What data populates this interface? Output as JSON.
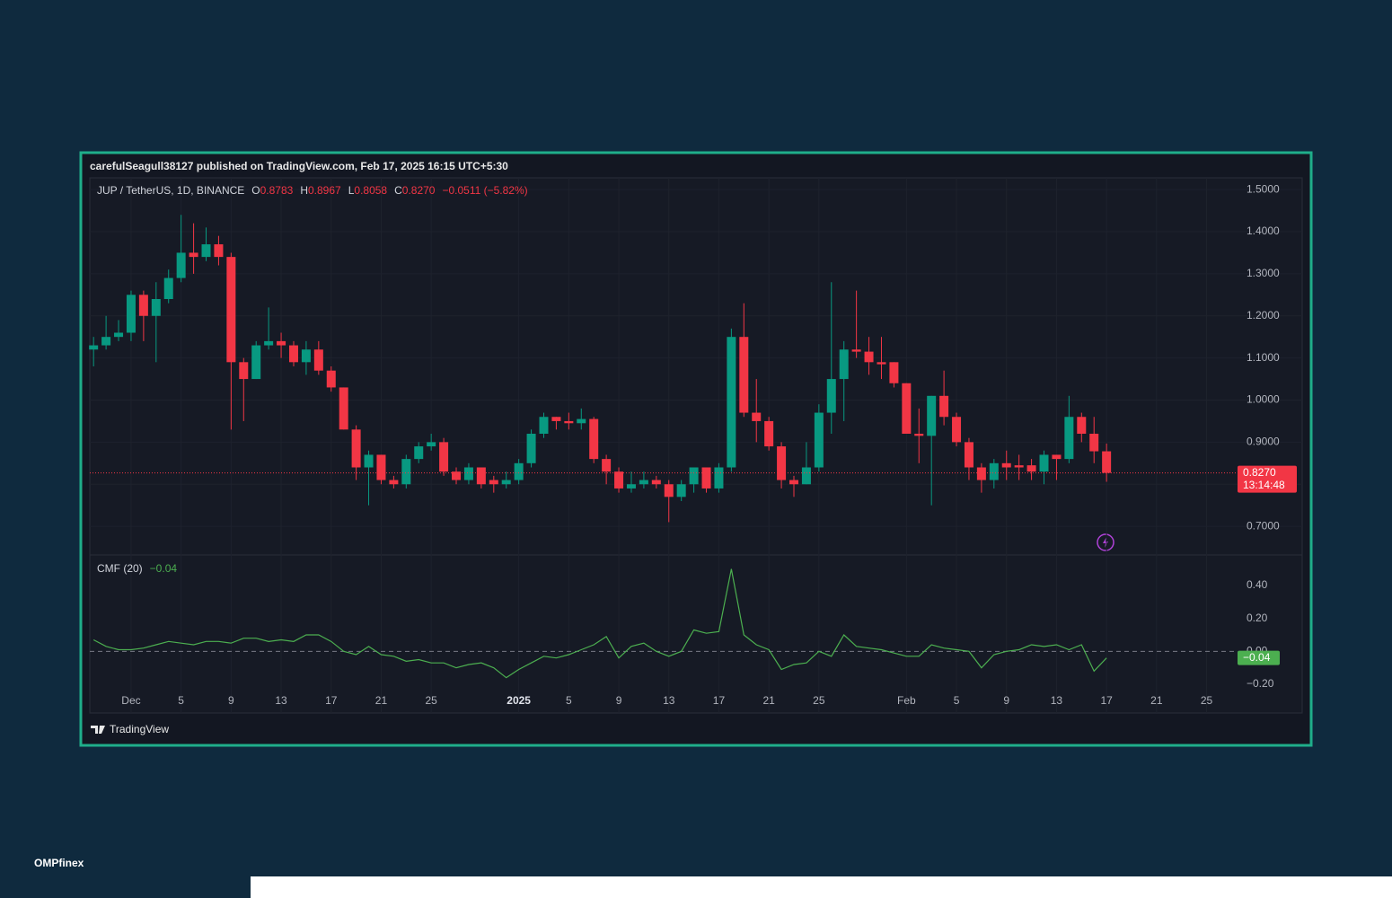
{
  "header": {
    "published": "carefulSeagull38127 published on TradingView.com, Feb 17, 2025 16:15 UTC+5:30",
    "footer_logo": "TradingView",
    "brand": "OMPfinex"
  },
  "chart_data": [
    {
      "type": "candlestick",
      "legend": {
        "symbol": "JUP / TetherUS, 1D, BINANCE",
        "items": [
          {
            "key": "O",
            "value": "0.8783"
          },
          {
            "key": "H",
            "value": "0.8967"
          },
          {
            "key": "L",
            "value": "0.8058"
          },
          {
            "key": "C",
            "value": "0.8270"
          }
        ],
        "change": "−0.0511 (−5.82%)"
      },
      "last_price_label": "0.8270",
      "countdown": "13:14:48",
      "up_color": "#089981",
      "down_color": "#f23645",
      "grid": true,
      "xlim": [
        -0.3,
        90.9
      ],
      "xticks": [
        {
          "value": 3,
          "label": "Dec"
        },
        {
          "value": 7,
          "label": "5"
        },
        {
          "value": 11,
          "label": "9"
        },
        {
          "value": 15,
          "label": "13"
        },
        {
          "value": 19,
          "label": "17"
        },
        {
          "value": 23,
          "label": "21"
        },
        {
          "value": 27,
          "label": "25"
        },
        {
          "value": 34,
          "label": "2025"
        },
        {
          "value": 38,
          "label": "5"
        },
        {
          "value": 42,
          "label": "9"
        },
        {
          "value": 46,
          "label": "13"
        },
        {
          "value": 50,
          "label": "17"
        },
        {
          "value": 54,
          "label": "21"
        },
        {
          "value": 58,
          "label": "25"
        },
        {
          "value": 65,
          "label": "Feb"
        },
        {
          "value": 69,
          "label": "5"
        },
        {
          "value": 73,
          "label": "9"
        },
        {
          "value": 77,
          "label": "13"
        },
        {
          "value": 81,
          "label": "17"
        },
        {
          "value": 85,
          "label": "21"
        },
        {
          "value": 89,
          "label": "25"
        }
      ],
      "ylim": [
        0.632,
        1.528
      ],
      "yticks": [
        {
          "value": 0.7,
          "label": "0.7000"
        },
        {
          "value": 0.8,
          "label": "0.8000"
        },
        {
          "value": 0.9,
          "label": "0.9000"
        },
        {
          "value": 1.0,
          "label": "1.0000"
        },
        {
          "value": 1.1,
          "label": "1.1000"
        },
        {
          "value": 1.2,
          "label": "1.2000"
        },
        {
          "value": 1.3,
          "label": "1.3000"
        },
        {
          "value": 1.4,
          "label": "1.4000"
        },
        {
          "value": 1.5,
          "label": "1.5000"
        }
      ],
      "open": [
        1.12,
        1.13,
        1.15,
        1.16,
        1.25,
        1.2,
        1.24,
        1.29,
        1.35,
        1.34,
        1.37,
        1.34,
        1.09,
        1.05,
        1.13,
        1.14,
        1.13,
        1.09,
        1.12,
        1.07,
        1.03,
        0.93,
        0.84,
        0.87,
        0.81,
        0.8,
        0.86,
        0.89,
        0.9,
        0.83,
        0.81,
        0.84,
        0.81,
        0.8,
        0.81,
        0.85,
        0.92,
        0.96,
        0.95,
        0.945,
        0.955,
        0.86,
        0.83,
        0.79,
        0.8,
        0.81,
        0.8,
        0.77,
        0.8,
        0.84,
        0.79,
        0.84,
        1.15,
        0.97,
        0.95,
        0.89,
        0.81,
        0.8,
        0.84,
        0.97,
        1.05,
        1.12,
        1.115,
        1.09,
        1.09,
        1.04,
        0.92,
        0.915,
        1.01,
        0.96,
        0.9,
        0.84,
        0.81,
        0.85,
        0.845,
        0.845,
        0.83,
        0.87,
        0.86,
        0.96,
        0.92,
        0.8783
      ],
      "high": [
        1.15,
        1.2,
        1.19,
        1.26,
        1.26,
        1.28,
        1.31,
        1.44,
        1.42,
        1.41,
        1.39,
        1.35,
        1.1,
        1.14,
        1.22,
        1.16,
        1.14,
        1.14,
        1.14,
        1.08,
        1.03,
        0.94,
        0.88,
        0.87,
        0.82,
        0.87,
        0.9,
        0.92,
        0.91,
        0.84,
        0.85,
        0.84,
        0.82,
        0.83,
        0.86,
        0.93,
        0.97,
        0.96,
        0.97,
        0.98,
        0.96,
        0.87,
        0.84,
        0.83,
        0.83,
        0.82,
        0.81,
        0.81,
        0.84,
        0.84,
        0.85,
        1.17,
        1.23,
        1.05,
        0.96,
        0.9,
        0.82,
        0.9,
        0.99,
        1.28,
        1.14,
        1.26,
        1.15,
        1.15,
        1.09,
        1.04,
        0.98,
        1.01,
        1.07,
        0.97,
        0.91,
        0.85,
        0.86,
        0.88,
        0.87,
        0.86,
        0.88,
        0.87,
        1.01,
        0.97,
        0.96,
        0.8967
      ],
      "low": [
        1.08,
        1.12,
        1.14,
        1.14,
        1.14,
        1.09,
        1.23,
        1.28,
        1.3,
        1.33,
        1.32,
        0.93,
        0.95,
        1.05,
        1.12,
        1.1,
        1.08,
        1.06,
        1.06,
        1.02,
        0.93,
        0.81,
        0.75,
        0.8,
        0.79,
        0.79,
        0.85,
        0.88,
        0.82,
        0.8,
        0.8,
        0.79,
        0.78,
        0.79,
        0.8,
        0.84,
        0.91,
        0.93,
        0.93,
        0.93,
        0.85,
        0.8,
        0.78,
        0.78,
        0.79,
        0.79,
        0.71,
        0.76,
        0.78,
        0.78,
        0.78,
        0.83,
        0.96,
        0.9,
        0.88,
        0.79,
        0.77,
        0.8,
        0.83,
        0.92,
        0.95,
        1.1,
        1.06,
        1.05,
        1.03,
        0.92,
        0.85,
        0.75,
        0.94,
        0.89,
        0.81,
        0.78,
        0.79,
        0.81,
        0.81,
        0.81,
        0.8,
        0.81,
        0.85,
        0.9,
        0.85,
        0.8058
      ],
      "close": [
        1.13,
        1.15,
        1.16,
        1.25,
        1.2,
        1.24,
        1.29,
        1.35,
        1.34,
        1.37,
        1.34,
        1.09,
        1.05,
        1.13,
        1.14,
        1.13,
        1.09,
        1.12,
        1.07,
        1.03,
        0.93,
        0.84,
        0.87,
        0.81,
        0.8,
        0.86,
        0.89,
        0.9,
        0.83,
        0.81,
        0.84,
        0.8,
        0.8,
        0.81,
        0.85,
        0.92,
        0.96,
        0.95,
        0.945,
        0.955,
        0.86,
        0.83,
        0.79,
        0.8,
        0.81,
        0.8,
        0.77,
        0.8,
        0.84,
        0.79,
        0.84,
        1.15,
        0.97,
        0.95,
        0.89,
        0.81,
        0.8,
        0.84,
        0.97,
        1.05,
        1.12,
        1.115,
        1.09,
        1.085,
        1.04,
        0.92,
        0.915,
        1.01,
        0.96,
        0.9,
        0.84,
        0.81,
        0.85,
        0.84,
        0.84,
        0.83,
        0.87,
        0.86,
        0.96,
        0.92,
        0.8783,
        0.827
      ]
    },
    {
      "type": "line",
      "title": "CMF (20)",
      "value_label": "−0.04",
      "color": "#4caf50",
      "label_color": "#4caf50",
      "ylim": [
        -0.38,
        0.58
      ],
      "yticks": [
        {
          "value": 0.4,
          "label": "0.40"
        },
        {
          "value": 0.2,
          "label": "0.20"
        },
        {
          "value": 0,
          "label": "0.00"
        },
        {
          "value": -0.2,
          "label": "−0.20"
        }
      ],
      "baseline": 0,
      "values": [
        0.07,
        0.03,
        0.01,
        0.01,
        0.02,
        0.04,
        0.06,
        0.05,
        0.04,
        0.06,
        0.06,
        0.05,
        0.08,
        0.08,
        0.06,
        0.07,
        0.06,
        0.1,
        0.1,
        0.06,
        0.0,
        -0.02,
        0.03,
        -0.02,
        -0.03,
        -0.06,
        -0.05,
        -0.07,
        -0.07,
        -0.1,
        -0.08,
        -0.07,
        -0.1,
        -0.16,
        -0.11,
        -0.07,
        -0.03,
        -0.04,
        -0.02,
        0.01,
        0.04,
        0.09,
        -0.04,
        0.03,
        0.05,
        0.0,
        -0.03,
        0.0,
        0.13,
        0.11,
        0.12,
        0.5,
        0.1,
        0.04,
        0.01,
        -0.11,
        -0.08,
        -0.07,
        0.0,
        -0.03,
        0.1,
        0.03,
        0.02,
        0.01,
        -0.01,
        -0.03,
        -0.03,
        0.04,
        0.02,
        0.01,
        0.0,
        -0.1,
        -0.02,
        0.0,
        0.01,
        0.04,
        0.03,
        0.04,
        0.01,
        0.04,
        -0.12,
        -0.04
      ]
    }
  ]
}
